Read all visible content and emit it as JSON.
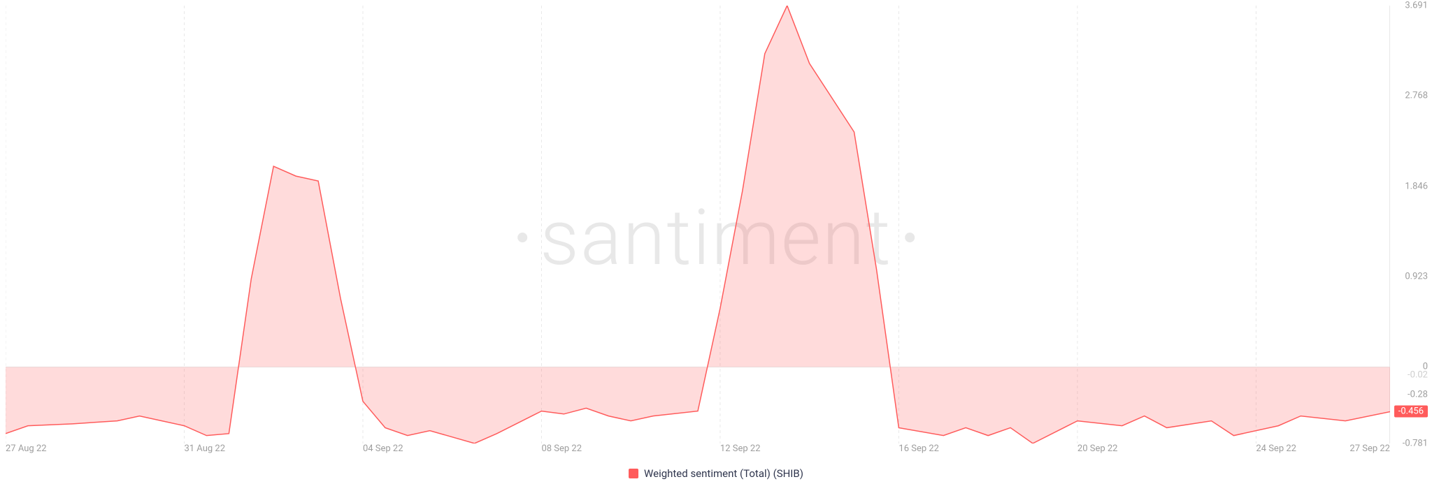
{
  "chart": {
    "type": "area",
    "background_color": "#ffffff",
    "series_color": "#ff5b5b",
    "fill_color": "#ff5b5b",
    "grid_color": "#e8e8e8",
    "axis_text_color": "#9e9e9e",
    "watermark_text": "santiment",
    "watermark_color": "#e8e8e8",
    "legend_label": "Weighted sentiment (Total) (SHIB)",
    "y_axis": {
      "min": -0.781,
      "max": 3.691,
      "ticks": [
        3.691,
        2.768,
        1.846,
        0.923,
        0,
        -0.28,
        -0.781
      ],
      "tick_labels": [
        "3.691",
        "2.768",
        "1.846",
        "0.923",
        "0",
        "-0.28",
        "-0.781"
      ],
      "current_value": -0.456,
      "current_label": "-0.456",
      "ytick_fontsize": 13,
      "small_tick_label": "-0.02"
    },
    "x_axis": {
      "min": 0,
      "max": 31,
      "ticks": [
        0,
        4,
        8,
        12,
        16,
        20,
        24,
        28,
        31
      ],
      "tick_labels": [
        "27 Aug 22",
        "31 Aug 22",
        "04 Sep 22",
        "08 Sep 22",
        "12 Sep 22",
        "16 Sep 22",
        "20 Sep 22",
        "24 Sep 22",
        "27 Sep 22"
      ],
      "xtick_fontsize": 13
    },
    "data": {
      "x": [
        0,
        0.5,
        1.5,
        2.5,
        3,
        3.5,
        4,
        4.5,
        5,
        5.5,
        6,
        6.5,
        7,
        7.5,
        8,
        8.5,
        9,
        9.5,
        10.5,
        11,
        12,
        12.5,
        13,
        13.5,
        14,
        14.5,
        15.5,
        16,
        16.5,
        17,
        17.5,
        18,
        19,
        19.5,
        20,
        21,
        21.5,
        22,
        22.5,
        23,
        24,
        25,
        25.5,
        26,
        27,
        27.5,
        28.5,
        29,
        30,
        31
      ],
      "y": [
        -0.68,
        -0.6,
        -0.58,
        -0.55,
        -0.5,
        -0.55,
        -0.6,
        -0.7,
        -0.68,
        0.9,
        2.05,
        1.95,
        1.9,
        0.7,
        -0.35,
        -0.62,
        -0.7,
        -0.65,
        -0.78,
        -0.68,
        -0.45,
        -0.48,
        -0.42,
        -0.5,
        -0.55,
        -0.5,
        -0.45,
        0.6,
        1.8,
        3.2,
        3.691,
        3.1,
        2.4,
        1.0,
        -0.62,
        -0.7,
        -0.62,
        -0.7,
        -0.62,
        -0.78,
        -0.55,
        -0.6,
        -0.5,
        -0.62,
        -0.55,
        -0.7,
        -0.6,
        -0.5,
        -0.55,
        -0.456
      ]
    }
  }
}
